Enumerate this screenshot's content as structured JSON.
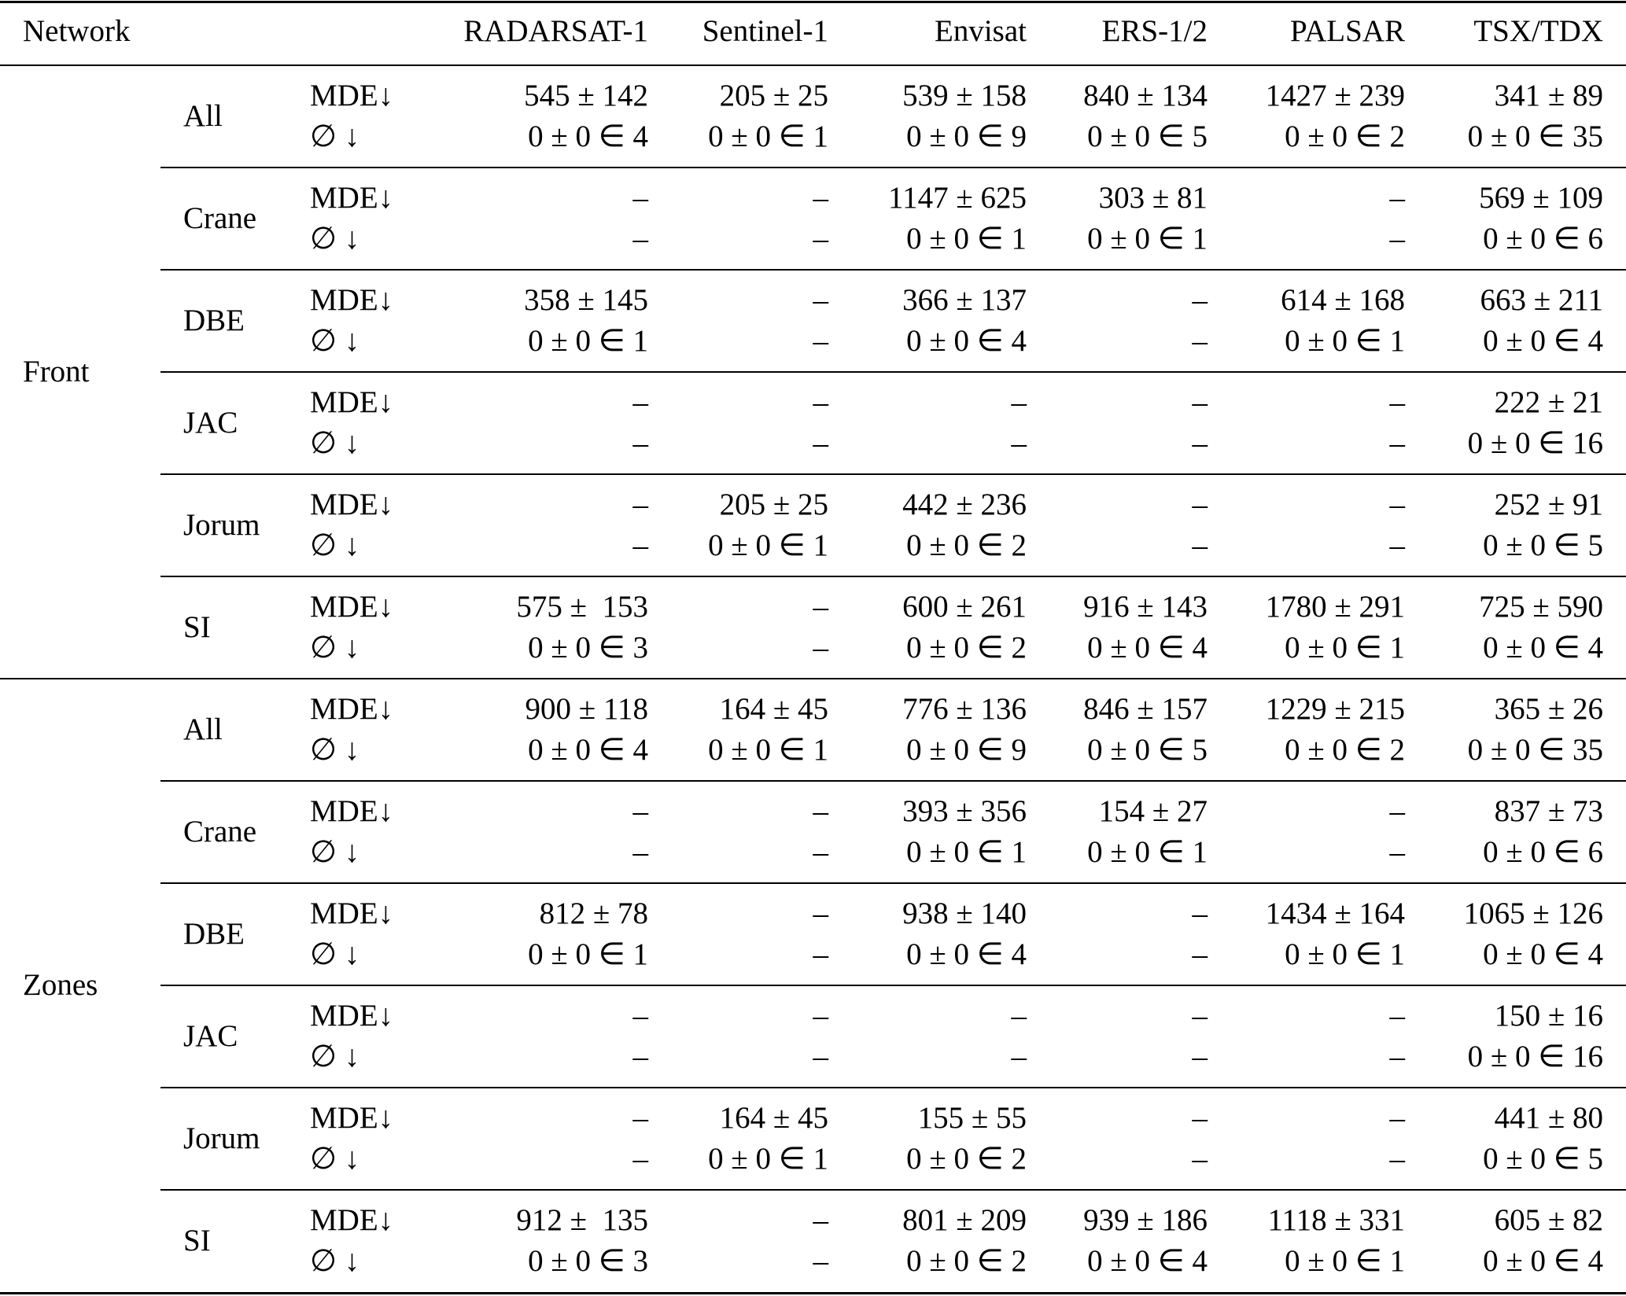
{
  "header": {
    "network": "Network",
    "columns": [
      "RADARSAT-1",
      "Sentinel-1",
      "Envisat",
      "ERS-1/2",
      "PALSAR",
      "TSX/TDX"
    ]
  },
  "metrics": {
    "mde": "MDE↓",
    "empty": "∅ ↓"
  },
  "groups": [
    {
      "name": "Front",
      "rows": [
        {
          "name": "All",
          "mde": [
            "545 ± 142",
            "205 ± 25",
            "539 ± 158",
            "840 ± 134",
            "1427 ± 239",
            "341 ± 89"
          ],
          "empty": [
            "0 ± 0 ∈ 4",
            "0 ± 0 ∈ 1",
            "0 ± 0 ∈ 9",
            "0 ± 0 ∈ 5",
            "0 ± 0 ∈ 2",
            "0 ± 0 ∈ 35"
          ]
        },
        {
          "name": "Crane",
          "mde": [
            "–",
            "–",
            "1147 ± 625",
            "303 ± 81",
            "–",
            "569 ± 109"
          ],
          "empty": [
            "–",
            "–",
            "0 ± 0 ∈ 1",
            "0 ± 0 ∈ 1",
            "–",
            "0 ± 0 ∈ 6"
          ]
        },
        {
          "name": "DBE",
          "mde": [
            "358 ± 145",
            "–",
            "366 ± 137",
            "–",
            "614 ± 168",
            "663 ± 211"
          ],
          "empty": [
            "0 ± 0 ∈ 1",
            "–",
            "0 ± 0 ∈ 4",
            "–",
            "0 ± 0 ∈ 1",
            "0 ± 0 ∈ 4"
          ]
        },
        {
          "name": "JAC",
          "mde": [
            "–",
            "–",
            "–",
            "–",
            "–",
            "222 ± 21"
          ],
          "empty": [
            "–",
            "–",
            "–",
            "–",
            "–",
            "0 ± 0 ∈ 16"
          ]
        },
        {
          "name": "Jorum",
          "mde": [
            "–",
            "205 ± 25",
            "442 ± 236",
            "–",
            "–",
            "252 ± 91"
          ],
          "empty": [
            "–",
            "0 ± 0 ∈ 1",
            "0 ± 0 ∈ 2",
            "–",
            "–",
            "0 ± 0 ∈ 5"
          ]
        },
        {
          "name": "SI",
          "mde": [
            "575 ±  153",
            "–",
            "600 ± 261",
            "916 ± 143",
            "1780 ± 291",
            "725 ± 590"
          ],
          "empty": [
            "0 ± 0 ∈ 3",
            "–",
            "0 ± 0 ∈ 2",
            "0 ± 0 ∈ 4",
            "0 ± 0 ∈ 1",
            "0 ± 0 ∈ 4"
          ]
        }
      ]
    },
    {
      "name": "Zones",
      "rows": [
        {
          "name": "All",
          "mde": [
            "900 ± 118",
            "164 ± 45",
            "776 ± 136",
            "846 ± 157",
            "1229 ± 215",
            "365 ± 26"
          ],
          "empty": [
            "0 ± 0 ∈ 4",
            "0 ± 0 ∈ 1",
            "0 ± 0 ∈ 9",
            "0 ± 0 ∈ 5",
            "0 ± 0 ∈ 2",
            "0 ± 0 ∈ 35"
          ]
        },
        {
          "name": "Crane",
          "mde": [
            "–",
            "–",
            "393 ± 356",
            "154 ± 27",
            "–",
            "837 ± 73"
          ],
          "empty": [
            "–",
            "–",
            "0 ± 0 ∈ 1",
            "0 ± 0 ∈ 1",
            "–",
            "0 ± 0 ∈ 6"
          ]
        },
        {
          "name": "DBE",
          "mde": [
            "812 ± 78",
            "–",
            "938 ± 140",
            "–",
            "1434 ± 164",
            "1065 ± 126"
          ],
          "empty": [
            "0 ± 0 ∈ 1",
            "–",
            "0 ± 0 ∈ 4",
            "–",
            "0 ± 0 ∈ 1",
            "0 ± 0 ∈ 4"
          ]
        },
        {
          "name": "JAC",
          "mde": [
            "–",
            "–",
            "–",
            "–",
            "–",
            "150 ± 16"
          ],
          "empty": [
            "–",
            "–",
            "–",
            "–",
            "–",
            "0 ± 0 ∈ 16"
          ]
        },
        {
          "name": "Jorum",
          "mde": [
            "–",
            "164 ± 45",
            "155 ± 55",
            "–",
            "–",
            "441 ± 80"
          ],
          "empty": [
            "–",
            "0 ± 0 ∈ 1",
            "0 ± 0 ∈ 2",
            "–",
            "–",
            "0 ± 0 ∈ 5"
          ]
        },
        {
          "name": "SI",
          "mde": [
            "912 ±  135",
            "–",
            "801 ± 209",
            "939 ± 186",
            "1118 ± 331",
            "605 ± 82"
          ],
          "empty": [
            "0 ± 0 ∈ 3",
            "–",
            "0 ± 0 ∈ 2",
            "0 ± 0 ∈ 4",
            "0 ± 0 ∈ 1",
            "0 ± 0 ∈ 4"
          ]
        }
      ]
    }
  ]
}
